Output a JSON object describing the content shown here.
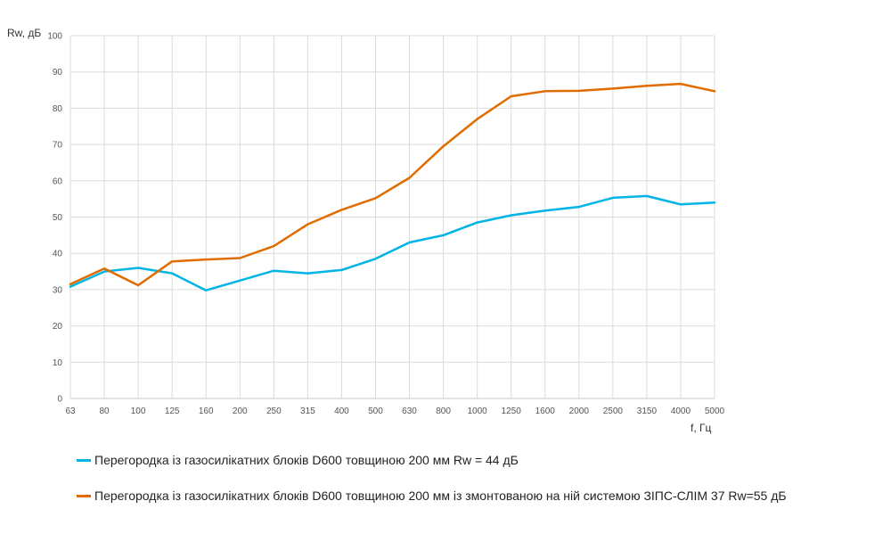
{
  "chart_data": {
    "type": "line",
    "xlabel": "f, Гц",
    "ylabel": "Rw, дБ",
    "categories": [
      "63",
      "80",
      "100",
      "125",
      "160",
      "200",
      "250",
      "315",
      "400",
      "500",
      "630",
      "800",
      "1000",
      "1250",
      "1600",
      "2000",
      "2500",
      "3150",
      "4000",
      "5000"
    ],
    "ylim": [
      0,
      100
    ],
    "yticks": [
      0,
      10,
      20,
      30,
      40,
      50,
      60,
      70,
      80,
      90,
      100
    ],
    "grid": true,
    "legend_position": "bottom",
    "series": [
      {
        "name": "Перегородка із газосилікатних блоків D600 товщиною 200 мм Rw = 44 дБ",
        "color": "#00b4e6",
        "values": [
          30.8,
          35.0,
          36.0,
          34.5,
          29.8,
          32.5,
          35.2,
          34.5,
          35.4,
          38.5,
          43.0,
          45.0,
          48.5,
          50.5,
          51.8,
          52.8,
          55.3,
          55.8,
          53.5,
          54.0
        ]
      },
      {
        "name": "Перегородка із газосилікатних блоків D600 товщиною 200 мм із змонтованою на ній системою ЗІПС-СЛІМ 37 Rw=55 дБ",
        "color": "#e06c00",
        "values": [
          31.5,
          35.8,
          31.2,
          37.8,
          38.3,
          38.7,
          42.0,
          48.0,
          52.0,
          55.2,
          60.8,
          69.5,
          77.0,
          83.3,
          84.7,
          84.8,
          85.4,
          86.2,
          86.7,
          84.7
        ]
      }
    ]
  }
}
